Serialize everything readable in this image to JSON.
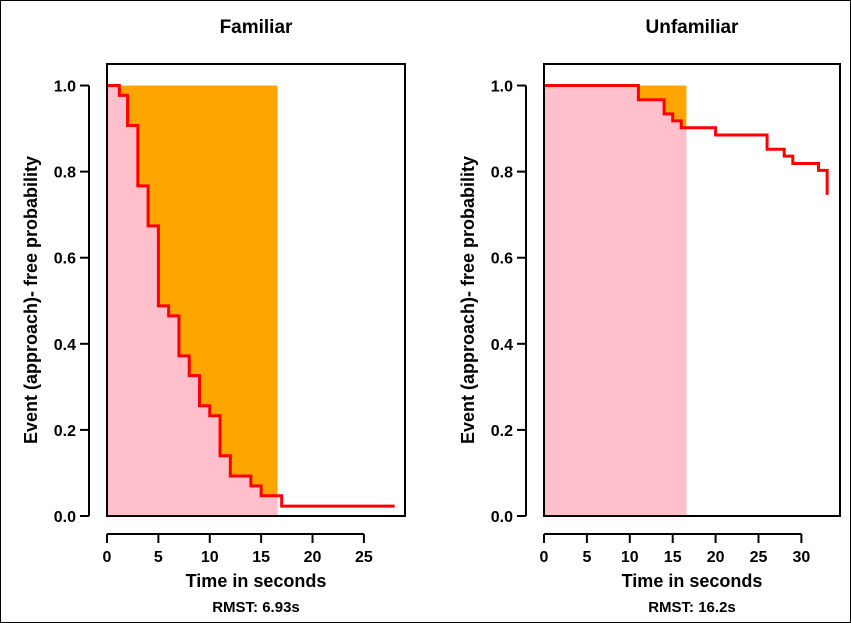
{
  "colors": {
    "km_line": "#ff0000",
    "rmst_area": "#ffc0cb",
    "restricted_region": "#ffa500",
    "axis": "#000000"
  },
  "chart_data": [
    {
      "type": "line",
      "subtype": "step",
      "title": "Familiar",
      "xlabel": "Time in seconds",
      "ylabel": "Event (approach)- free probability",
      "footnote": "RMST: 6.93s",
      "xlim": [
        0,
        29
      ],
      "ylim": [
        0,
        1.05
      ],
      "xticks": [
        "0",
        "5",
        "10",
        "15",
        "20",
        "25"
      ],
      "yticks": [
        "0.0",
        "0.2",
        "0.4",
        "0.6",
        "0.8",
        "1.0"
      ],
      "tau": 16.6,
      "series": [
        {
          "x": [
            0,
            1.2,
            2,
            3,
            4,
            5,
            6,
            7,
            8,
            9,
            10,
            11,
            12,
            14,
            15,
            17,
            28
          ],
          "y": [
            1.0,
            0.977,
            0.907,
            0.767,
            0.674,
            0.488,
            0.465,
            0.372,
            0.326,
            0.256,
            0.233,
            0.14,
            0.093,
            0.07,
            0.047,
            0.023,
            0.023
          ]
        }
      ]
    },
    {
      "type": "line",
      "subtype": "step",
      "title": "Unfamiliar",
      "xlabel": "Time in seconds",
      "ylabel": "Event (approach)- free probability",
      "footnote": "RMST: 16.2s",
      "xlim": [
        0,
        34.5
      ],
      "ylim": [
        0,
        1.05
      ],
      "xticks": [
        "0",
        "5",
        "10",
        "15",
        "20",
        "25",
        "30"
      ],
      "yticks": [
        "0.0",
        "0.2",
        "0.4",
        "0.6",
        "0.8",
        "1.0"
      ],
      "tau": 16.6,
      "series": [
        {
          "x": [
            0,
            11,
            14,
            15,
            16,
            17,
            20,
            26,
            28,
            29,
            32,
            33,
            33
          ],
          "y": [
            1.0,
            0.967,
            0.934,
            0.918,
            0.902,
            0.902,
            0.885,
            0.852,
            0.836,
            0.819,
            0.803,
            0.77,
            0.746
          ]
        }
      ]
    }
  ]
}
